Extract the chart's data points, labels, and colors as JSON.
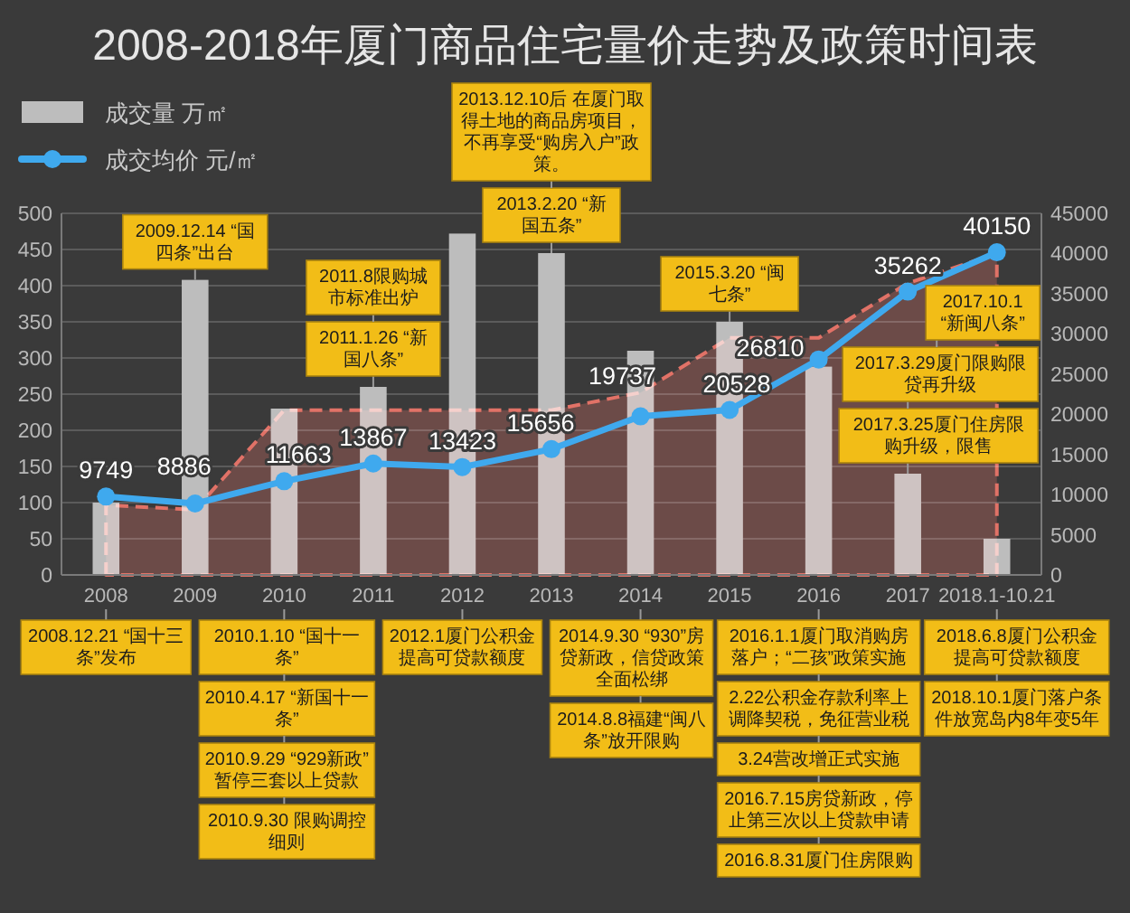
{
  "chart_data": {
    "type": "bar",
    "title": "2008-2018年厦门商品住宅量价走势及政策时间表",
    "categories": [
      "2008",
      "2009",
      "2010",
      "2011",
      "2012",
      "2013",
      "2014",
      "2015",
      "2016",
      "2017",
      "2018.1-10.21"
    ],
    "series": [
      {
        "name": "成交量 万㎡",
        "color": "#bdbdbd",
        "values": [
          100,
          408,
          230,
          260,
          472,
          445,
          310,
          350,
          288,
          140,
          50
        ]
      },
      {
        "type": "area",
        "axis": "y2",
        "color": "#d8483a",
        "line_style": "dashed",
        "values": [
          8700,
          8100,
          20500,
          20500,
          20500,
          20500,
          22700,
          29500,
          29500,
          36300,
          40000
        ]
      },
      {
        "name": "成交均价 元/㎡",
        "type": "line",
        "axis": "y2",
        "color": "#3fa9ee",
        "marker": "circle",
        "values": [
          9749,
          8886,
          11663,
          13867,
          13423,
          15656,
          19737,
          20528,
          26810,
          35262,
          40150
        ],
        "value_labels": [
          "9749",
          "8886",
          "11663",
          "13867",
          "13423",
          "15656",
          "19737",
          "20528",
          "26810",
          "35262",
          "40150"
        ]
      }
    ],
    "ylim": [
      0,
      500
    ],
    "yticks": [
      0,
      50,
      100,
      150,
      200,
      250,
      300,
      350,
      400,
      450,
      500
    ],
    "y2lim": [
      0,
      45000
    ],
    "y2ticks": [
      0,
      5000,
      10000,
      15000,
      20000,
      25000,
      30000,
      35000,
      40000,
      45000
    ],
    "grid": "y",
    "legend": "top left",
    "annotations": [
      "2008.12.21 “国十三条”发布",
      "2009.12.14 “国四条”出台",
      "2010.1.10 “国十一条”",
      "2010.4.17 “新国十一条”",
      "2010.9.29 “929新政”暂停三套以上贷款",
      "2010.9.30 限购调控细则",
      "2011.1.26 “新国八条”",
      "2011.8限购城市标准出炉",
      "2012.1厦门公积金提高可贷款额度",
      "2013.2.20 “新国五条”",
      "2013.12.10后 在厦门取得土地的商品房项目，不再享受“购房入户”政策。",
      "2014.9.30 “930”房贷新政，信贷政策全面松绑",
      "2014.8.8福建“闽八条”放开限购",
      "2015.3.20 “闽七条”",
      "2016.1.1厦门取消购房落户；“二孩”政策实施",
      "2.22公积金存款利率上调降契税，免征营业税",
      "3.24营改增正式实施",
      "2016.7.15房贷新政，停止第三次以上贷款申请",
      "2016.8.31厦门住房限购",
      "2017.3.25厦门住房限购升级，限售",
      "2017.3.29厦门限购限贷再升级",
      "2017.10.1 “新闽八条”",
      "2018.6.8厦门公积金提高可贷款额度",
      "2018.10.1厦门落户条件放宽岛内8年变5年"
    ]
  }
}
